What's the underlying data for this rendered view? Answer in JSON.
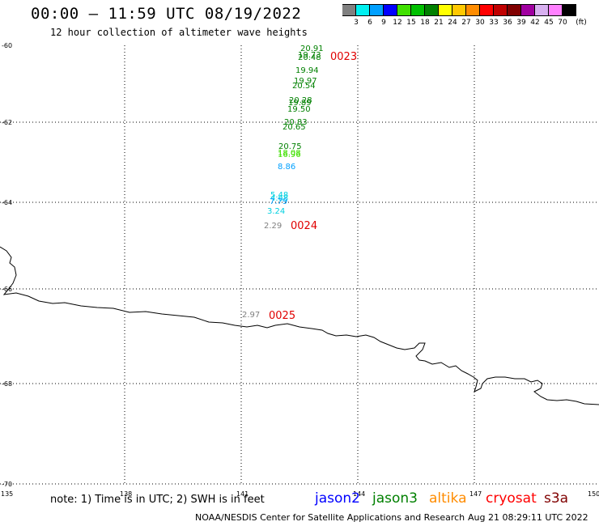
{
  "header": {
    "title": "00:00 – 11:59 UTC 08/19/2022",
    "subtitle": "12 hour collection of altimeter wave heights"
  },
  "legend": {
    "unit": "(ft)",
    "bins": [
      {
        "label": "3",
        "color": "#808080"
      },
      {
        "label": "6",
        "color": "#00f0f0"
      },
      {
        "label": "9",
        "color": "#00a0ff"
      },
      {
        "label": "12",
        "color": "#0000ff"
      },
      {
        "label": "15",
        "color": "#40e000"
      },
      {
        "label": "18",
        "color": "#00c000"
      },
      {
        "label": "21",
        "color": "#008000"
      },
      {
        "label": "24",
        "color": "#ffff00"
      },
      {
        "label": "27",
        "color": "#ffc800"
      },
      {
        "label": "30",
        "color": "#ff8c00"
      },
      {
        "label": "33",
        "color": "#ff0000"
      },
      {
        "label": "36",
        "color": "#c00000"
      },
      {
        "label": "39",
        "color": "#800000"
      },
      {
        "label": "42",
        "color": "#a000a0"
      },
      {
        "label": "45",
        "color": "#d8b0f0"
      },
      {
        "label": "70",
        "color": "#ff80ff"
      },
      {
        "label": "",
        "color": "#000000"
      }
    ]
  },
  "map": {
    "lon_range": [
      135,
      150
    ],
    "lat_range": [
      -70,
      -60
    ],
    "lat_ticks": [
      "-60",
      "-62",
      "-64",
      "-66",
      "-68",
      "-70"
    ],
    "lon_ticks": [
      "135",
      "138",
      "141",
      "144",
      "147",
      "150"
    ],
    "grid": "dotted",
    "observations": [
      {
        "value": "20.91",
        "color": "#008000"
      },
      {
        "value": "19.73",
        "color": "#008000"
      },
      {
        "value": "20.48",
        "color": "#008000"
      },
      {
        "value": "19.94",
        "color": "#008000"
      },
      {
        "value": "19.97",
        "color": "#008000"
      },
      {
        "value": "20.54",
        "color": "#008000"
      },
      {
        "value": "20.28",
        "color": "#008000"
      },
      {
        "value": "19.89",
        "color": "#008000"
      },
      {
        "value": "19.50",
        "color": "#008000"
      },
      {
        "value": "20.83",
        "color": "#008000"
      },
      {
        "value": "20.65",
        "color": "#008000"
      },
      {
        "value": "20.75",
        "color": "#008000"
      },
      {
        "value": "18.08",
        "color": "#40e000"
      },
      {
        "value": "16.96",
        "color": "#40e000"
      },
      {
        "value": "8.86",
        "color": "#00a0ff"
      },
      {
        "value": "5.48",
        "color": "#00d0e0"
      },
      {
        "value": "4.68",
        "color": "#00d0e0"
      },
      {
        "value": "7.79",
        "color": "#00a0ff"
      },
      {
        "value": "3.24",
        "color": "#00d0e0"
      },
      {
        "value": "2.29",
        "color": "#808080"
      },
      {
        "value": "2.97",
        "color": "#808080"
      }
    ],
    "time_labels": [
      "0023",
      "0024",
      "0025"
    ]
  },
  "footer": {
    "note": "note: 1) Time is in UTC; 2) SWH is in feet",
    "credit": "NOAA/NESDIS Center for Satellite Applications and Research",
    "timestamp": "Aug 21 08:29:11 UTC 2022",
    "satellites": [
      {
        "name": "jason2",
        "color": "#0000ff"
      },
      {
        "name": "jason3",
        "color": "#008000"
      },
      {
        "name": "altika",
        "color": "#ff8c00"
      },
      {
        "name": "cryosat",
        "color": "#ff0000"
      },
      {
        "name": "s3a",
        "color": "#800000"
      }
    ]
  }
}
